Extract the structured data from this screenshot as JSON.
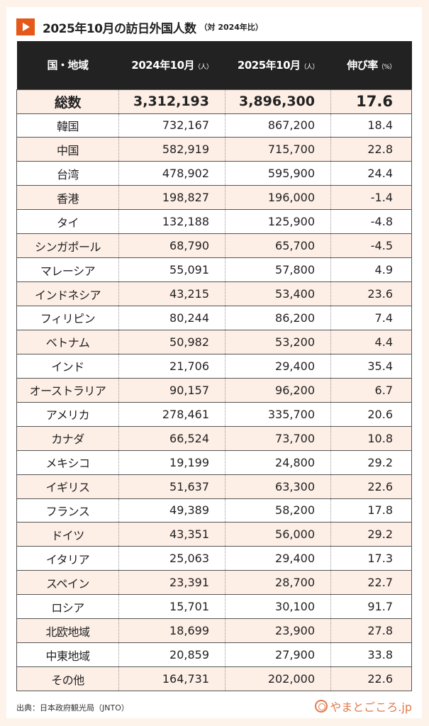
{
  "title": {
    "main": "2025年10月の訪日外国人数",
    "sub": "（対 2024年比）"
  },
  "table": {
    "headers": [
      {
        "label": "国・地域",
        "unit": ""
      },
      {
        "label": "2024年10月",
        "unit": "（人）"
      },
      {
        "label": "2025年10月",
        "unit": "（人）"
      },
      {
        "label": "伸び率",
        "unit": "（%）"
      }
    ],
    "total": [
      "総数",
      "3,312,193",
      "3,896,300",
      "17.6"
    ],
    "rows": [
      [
        "韓国",
        "732,167",
        "867,200",
        "18.4"
      ],
      [
        "中国",
        "582,919",
        "715,700",
        "22.8"
      ],
      [
        "台湾",
        "478,902",
        "595,900",
        "24.4"
      ],
      [
        "香港",
        "198,827",
        "196,000",
        "-1.4"
      ],
      [
        "タイ",
        "132,188",
        "125,900",
        "-4.8"
      ],
      [
        "シンガポール",
        "68,790",
        "65,700",
        "-4.5"
      ],
      [
        "マレーシア",
        "55,091",
        "57,800",
        "4.9"
      ],
      [
        "インドネシア",
        "43,215",
        "53,400",
        "23.6"
      ],
      [
        "フィリピン",
        "80,244",
        "86,200",
        "7.4"
      ],
      [
        "ベトナム",
        "50,982",
        "53,200",
        "4.4"
      ],
      [
        "インド",
        "21,706",
        "29,400",
        "35.4"
      ],
      [
        "オーストラリア",
        "90,157",
        "96,200",
        "6.7"
      ],
      [
        "アメリカ",
        "278,461",
        "335,700",
        "20.6"
      ],
      [
        "カナダ",
        "66,524",
        "73,700",
        "10.8"
      ],
      [
        "メキシコ",
        "19,199",
        "24,800",
        "29.2"
      ],
      [
        "イギリス",
        "51,637",
        "63,300",
        "22.6"
      ],
      [
        "フランス",
        "49,389",
        "58,200",
        "17.8"
      ],
      [
        "ドイツ",
        "43,351",
        "56,000",
        "29.2"
      ],
      [
        "イタリア",
        "25,063",
        "29,400",
        "17.3"
      ],
      [
        "スペイン",
        "23,391",
        "28,700",
        "22.7"
      ],
      [
        "ロシア",
        "15,701",
        "30,100",
        "91.7"
      ],
      [
        "北欧地域",
        "18,699",
        "23,900",
        "27.8"
      ],
      [
        "中東地域",
        "20,859",
        "27,900",
        "33.8"
      ],
      [
        "その他",
        "164,731",
        "202,000",
        "22.6"
      ]
    ]
  },
  "footer": {
    "source": "出典：日本政府観光局（JNTO）",
    "logo": "やまとごころ.jp"
  },
  "colors": {
    "accent": "#e4581a",
    "header_bg": "#222222",
    "alt_row": "#fdeee6",
    "page_bg": "#fdf3ea"
  }
}
